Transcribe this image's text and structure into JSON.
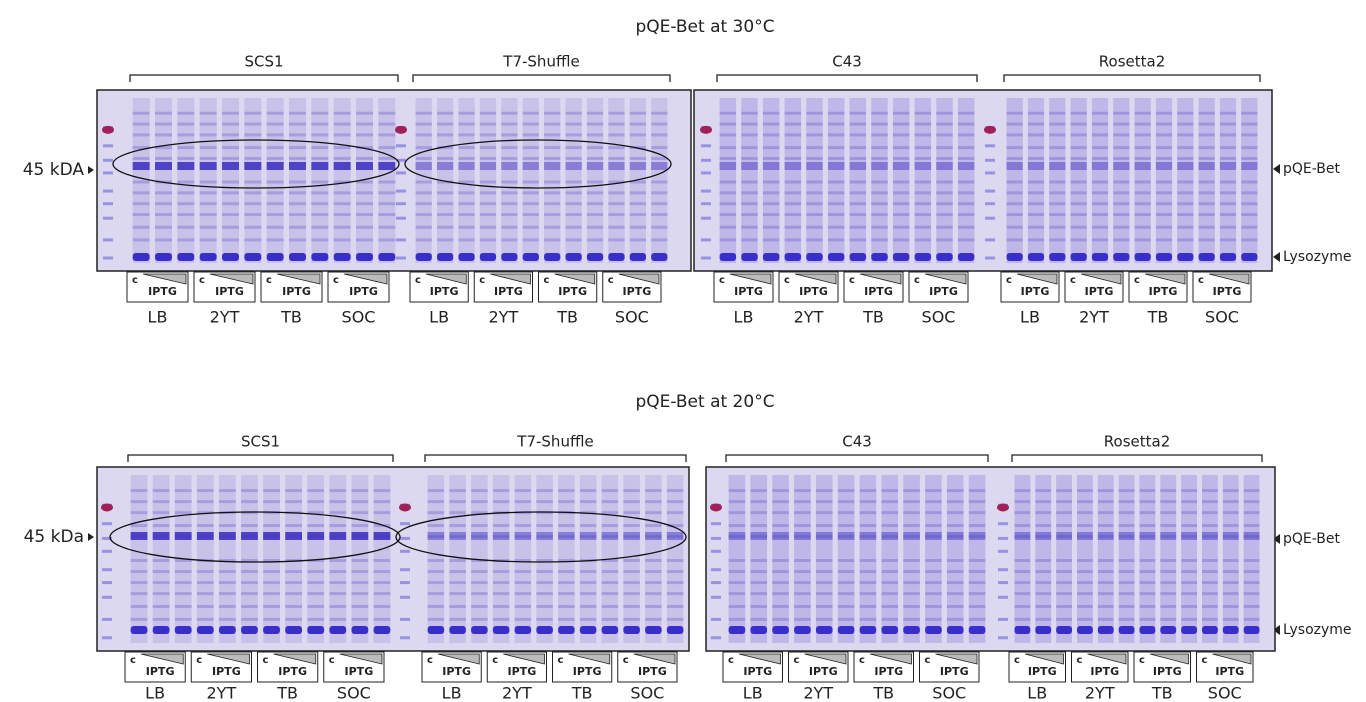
{
  "panels": [
    {
      "title": "pQE-Bet at 30°C",
      "marker": "45 kDA",
      "bands": [
        "pQE-Bet",
        "Lysozyme"
      ],
      "gels": [
        {
          "strains": [
            {
              "name": "SCS1",
              "groups": [
                {
                  "control": "c",
                  "induced": "IPTG",
                  "medium": "LB"
                },
                {
                  "control": "c",
                  "induced": "IPTG",
                  "medium": "2YT"
                },
                {
                  "control": "c",
                  "induced": "IPTG",
                  "medium": "TB"
                },
                {
                  "control": "c",
                  "induced": "IPTG",
                  "medium": "SOC"
                }
              ]
            },
            {
              "name": "T7-Shuffle",
              "groups": [
                {
                  "control": "c",
                  "induced": "IPTG",
                  "medium": "LB"
                },
                {
                  "control": "c",
                  "induced": "IPTG",
                  "medium": "2YT"
                },
                {
                  "control": "c",
                  "induced": "IPTG",
                  "medium": "TB"
                },
                {
                  "control": "c",
                  "induced": "IPTG",
                  "medium": "SOC"
                }
              ]
            }
          ]
        },
        {
          "strains": [
            {
              "name": "C43",
              "groups": [
                {
                  "control": "c",
                  "induced": "IPTG",
                  "medium": "LB"
                },
                {
                  "control": "c",
                  "induced": "IPTG",
                  "medium": "2YT"
                },
                {
                  "control": "c",
                  "induced": "IPTG",
                  "medium": "TB"
                },
                {
                  "control": "c",
                  "induced": "IPTG",
                  "medium": "SOC"
                }
              ]
            },
            {
              "name": "Rosetta2",
              "groups": [
                {
                  "control": "c",
                  "induced": "IPTG",
                  "medium": "LB"
                },
                {
                  "control": "c",
                  "induced": "IPTG",
                  "medium": "2YT"
                },
                {
                  "control": "c",
                  "induced": "IPTG",
                  "medium": "TB"
                },
                {
                  "control": "c",
                  "induced": "IPTG",
                  "medium": "SOC"
                }
              ]
            }
          ]
        }
      ]
    },
    {
      "title": "pQE-Bet at 20°C",
      "marker": "45 kDa",
      "bands": [
        "pQE-Bet",
        "Lysozyme"
      ],
      "gels": [
        {
          "strains": [
            {
              "name": "SCS1",
              "groups": [
                {
                  "control": "c",
                  "induced": "IPTG",
                  "medium": "LB"
                },
                {
                  "control": "c",
                  "induced": "IPTG",
                  "medium": "2YT"
                },
                {
                  "control": "c",
                  "induced": "IPTG",
                  "medium": "TB"
                },
                {
                  "control": "c",
                  "induced": "IPTG",
                  "medium": "SOC"
                }
              ]
            },
            {
              "name": "T7-Shuffle",
              "groups": [
                {
                  "control": "c",
                  "induced": "IPTG",
                  "medium": "LB"
                },
                {
                  "control": "c",
                  "induced": "IPTG",
                  "medium": "2YT"
                },
                {
                  "control": "c",
                  "induced": "IPTG",
                  "medium": "TB"
                },
                {
                  "control": "c",
                  "induced": "IPTG",
                  "medium": "SOC"
                }
              ]
            }
          ]
        },
        {
          "strains": [
            {
              "name": "C43",
              "groups": [
                {
                  "control": "c",
                  "induced": "IPTG",
                  "medium": "LB"
                },
                {
                  "control": "c",
                  "induced": "IPTG",
                  "medium": "2YT"
                },
                {
                  "control": "c",
                  "induced": "IPTG",
                  "medium": "TB"
                },
                {
                  "control": "c",
                  "induced": "IPTG",
                  "medium": "SOC"
                }
              ]
            },
            {
              "name": "Rosetta2",
              "groups": [
                {
                  "control": "c",
                  "induced": "IPTG",
                  "medium": "LB"
                },
                {
                  "control": "c",
                  "induced": "IPTG",
                  "medium": "2YT"
                },
                {
                  "control": "c",
                  "induced": "IPTG",
                  "medium": "TB"
                },
                {
                  "control": "c",
                  "induced": "IPTG",
                  "medium": "SOC"
                }
              ]
            }
          ]
        }
      ]
    }
  ]
}
